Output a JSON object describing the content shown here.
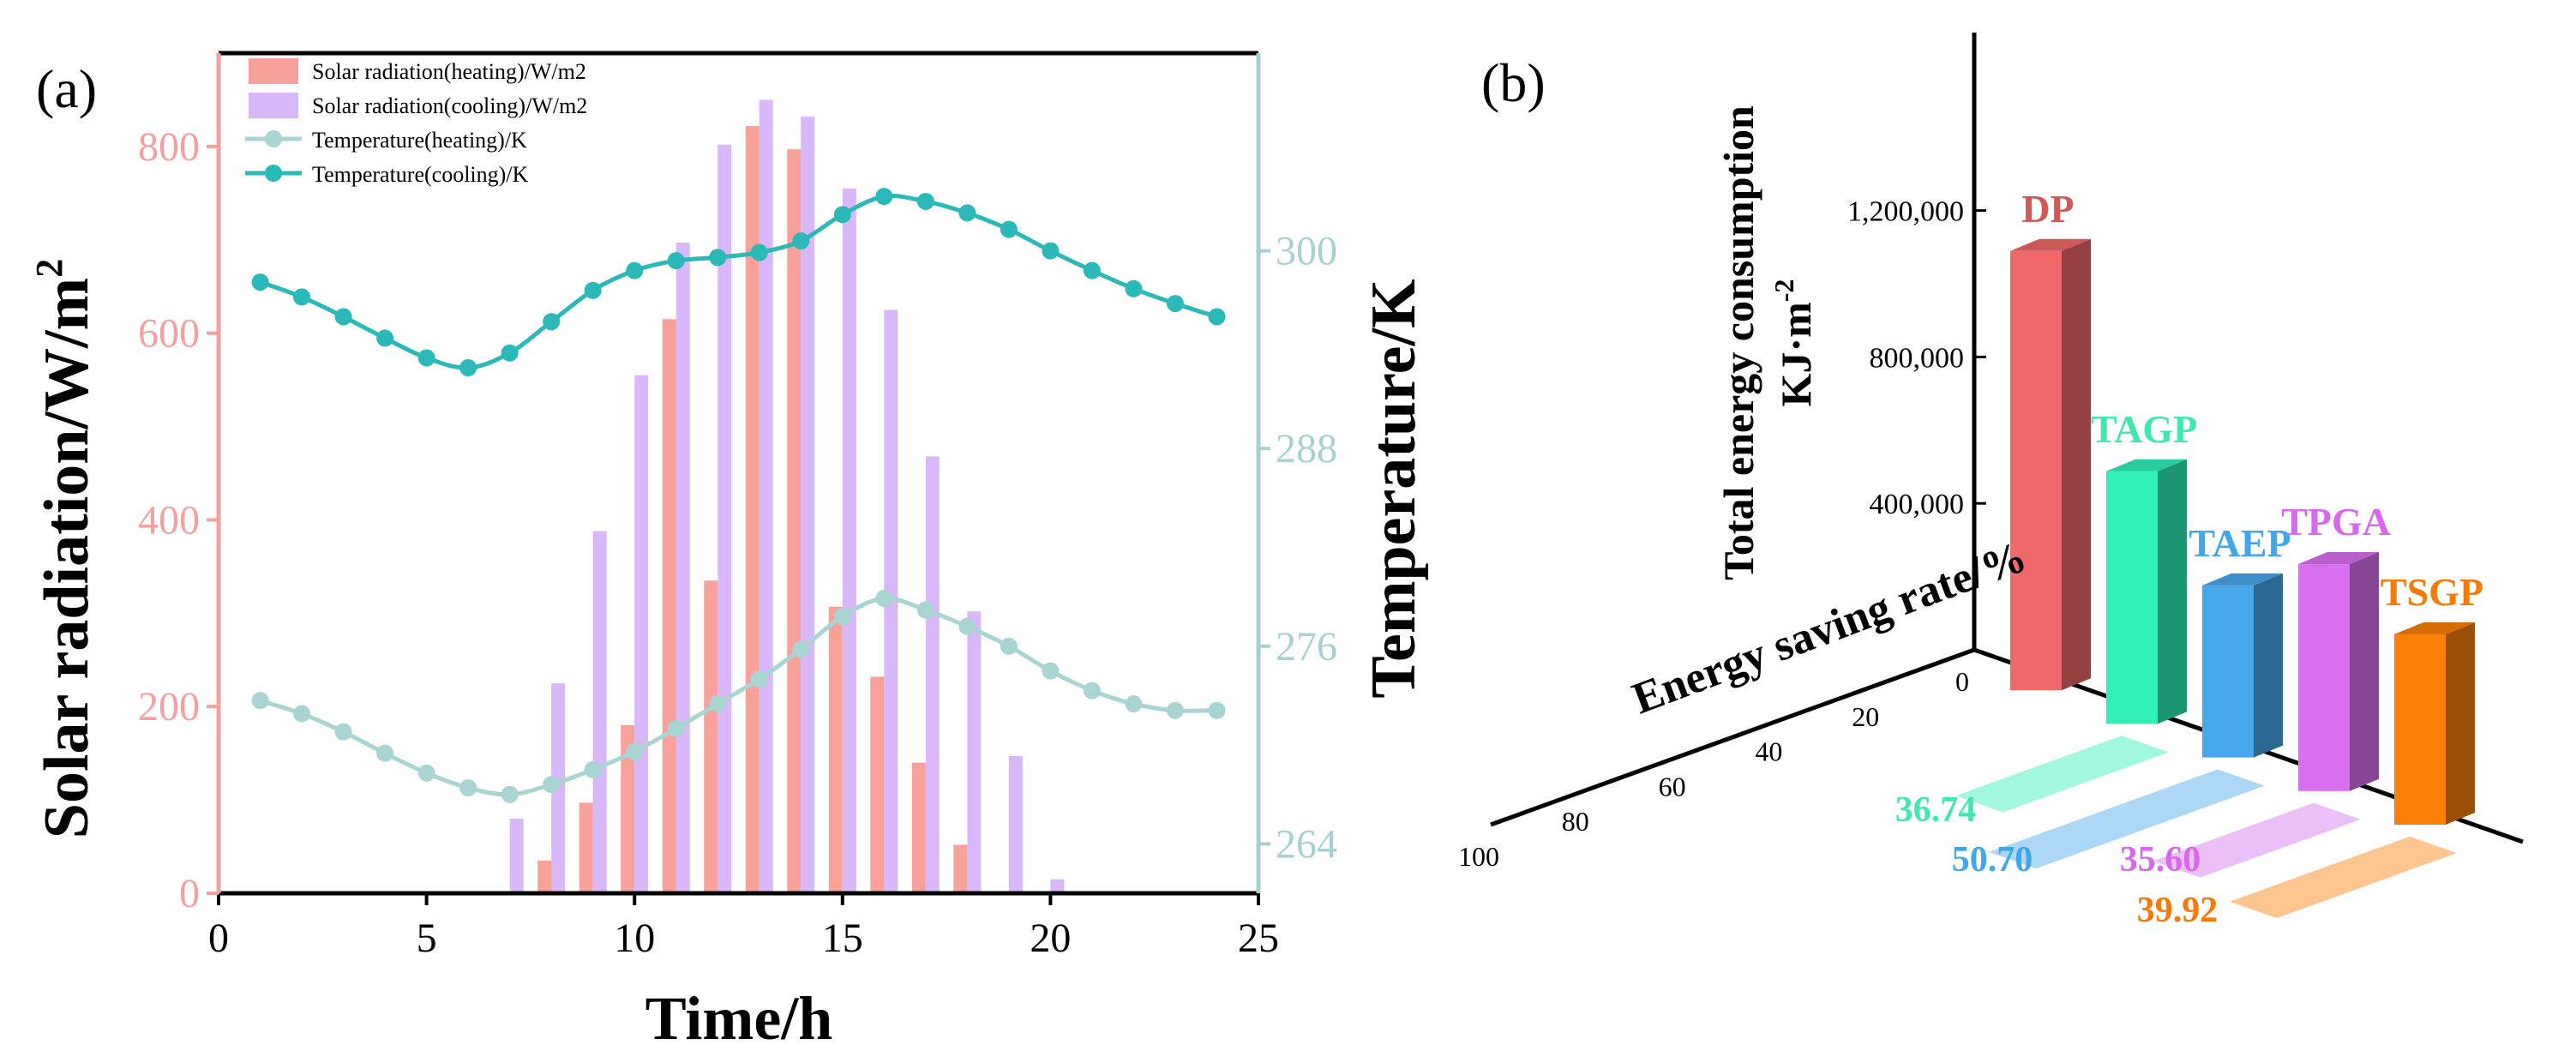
{
  "chart_data": [
    {
      "panel": "(a)",
      "type": "bar+line",
      "xlabel": "Time/h",
      "ylabel_left": "Solar radiation/W/m",
      "ylabel_left_sup": "2",
      "ylabel_right": "Temperature/K",
      "xlim": [
        0,
        25
      ],
      "ylim_left": [
        0,
        900
      ],
      "ylim_right": [
        261,
        312
      ],
      "x_ticks": [
        0,
        5,
        10,
        15,
        20,
        25
      ],
      "y_left_ticks": [
        0,
        200,
        400,
        600,
        800
      ],
      "y_right_ticks": [
        264,
        276,
        288,
        300
      ],
      "colors": {
        "heating_bar": "#f8a09a",
        "cooling_bar": "#d8b8f8",
        "heating_line": "#a8d4d2",
        "cooling_line": "#2ab8b8",
        "left_axis": "#f4a0a0",
        "right_axis": "#a8d0d0"
      },
      "legend": [
        "Solar radiation(heating)/W/m2",
        "Solar radiation(cooling)/W/m2",
        "Temperature(heating)/K",
        "Temperature(cooling)/K"
      ],
      "bars_heating": {
        "x": [
          8,
          9,
          10,
          11,
          12,
          13,
          14,
          15,
          16,
          17,
          18
        ],
        "values": [
          35,
          97,
          180,
          615,
          335,
          822,
          797,
          307,
          232,
          140,
          52
        ]
      },
      "bars_cooling": {
        "x": [
          7,
          8,
          9,
          10,
          11,
          12,
          13,
          14,
          15,
          16,
          17,
          18,
          19,
          20
        ],
        "values": [
          80,
          225,
          388,
          555,
          697,
          802,
          850,
          832,
          755,
          625,
          468,
          302,
          147,
          15
        ]
      },
      "line_heating": {
        "x": [
          1,
          2,
          3,
          4,
          5,
          6,
          7,
          8,
          9,
          10,
          11,
          12,
          13,
          14,
          15,
          16,
          17,
          18,
          19,
          20,
          21,
          22,
          23,
          24
        ],
        "values": [
          272.7,
          271.9,
          270.8,
          269.5,
          268.3,
          267.4,
          267.0,
          267.6,
          268.5,
          269.6,
          271.0,
          272.5,
          274.0,
          275.8,
          277.8,
          278.9,
          278.2,
          277.2,
          276.0,
          274.5,
          273.3,
          272.5,
          272.1,
          272.1
        ]
      },
      "line_cooling": {
        "x": [
          1,
          2,
          3,
          4,
          5,
          6,
          7,
          8,
          9,
          10,
          11,
          12,
          13,
          14,
          15,
          16,
          17,
          18,
          19,
          20,
          21,
          22,
          23,
          24
        ],
        "values": [
          298.1,
          297.2,
          296.0,
          294.7,
          293.5,
          292.9,
          293.8,
          295.7,
          297.6,
          298.8,
          299.4,
          299.6,
          299.9,
          300.6,
          302.2,
          303.3,
          303.0,
          302.3,
          301.3,
          300.0,
          298.8,
          297.7,
          296.8,
          296.0
        ]
      }
    },
    {
      "panel": "(b)",
      "type": "bar3d",
      "zlabel": "Total energy consumption",
      "zlabel_unit": "KJ·m",
      "zlabel_unit_sup": "-2",
      "depth_label": "Energy saving rate/%",
      "z_ticks": [
        400000,
        800000,
        1200000
      ],
      "z_tick_labels": [
        "400,000",
        "800,000",
        "1,200,000"
      ],
      "depth_ticks": [
        "0",
        "20",
        "40",
        "60",
        "80",
        "100"
      ],
      "categories": [
        "DP",
        "TAGP",
        "TAEP",
        "TPGA",
        "TSGP"
      ],
      "values": [
        1200000,
        690000,
        470000,
        620000,
        520000
      ],
      "saving_rates": [
        0,
        36.74,
        50.7,
        35.6,
        39.92
      ],
      "saving_labels": [
        "",
        "36.74",
        "50.70",
        "35.60",
        "39.92"
      ],
      "colors": [
        "#f06868",
        "#30f0b8",
        "#48a8ec",
        "#d870f0",
        "#fa8008"
      ],
      "label_colors": [
        "#d05858",
        "#40e8b0",
        "#40a8e8",
        "#d868f0",
        "#f47b08"
      ]
    }
  ]
}
